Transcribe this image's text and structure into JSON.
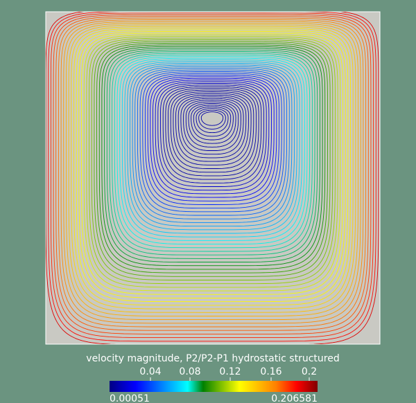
{
  "colors": {
    "background": "#6b9480",
    "domain_fill": "#c9c9c3",
    "domain_border": "#ffffff",
    "text": "#ffffff"
  },
  "legend": {
    "title": "velocity magnitude, P2/P2-P1 hydrostatic structured",
    "ticks": [
      "0.04",
      "0.08",
      "0.12",
      "0.16",
      "0.2"
    ],
    "tick_values": [
      0.04,
      0.08,
      0.12,
      0.16,
      0.2
    ],
    "min_label": "0.00051",
    "max_label": "0.206581",
    "min_value": 0.00051,
    "max_value": 0.206581,
    "colormap": [
      "#000083",
      "#0000ff",
      "#00ffff",
      "#008000",
      "#ffff00",
      "#ff8000",
      "#ff0000",
      "#800000"
    ]
  }
}
